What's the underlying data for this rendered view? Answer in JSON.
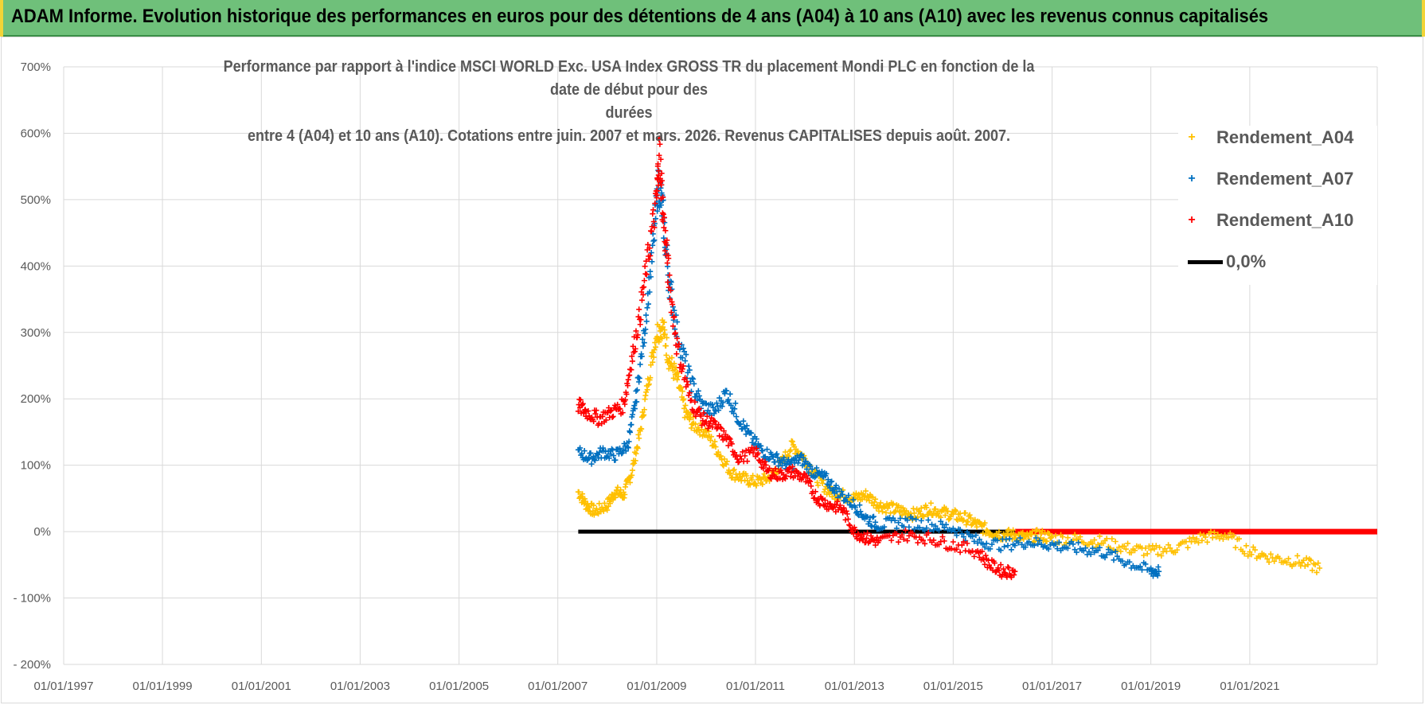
{
  "header": {
    "title": "ADAM Informe. Evolution historique des performances en euros pour des détentions de 4 ans (A04) à 10 ans (A10) avec les revenus connus capitalisés"
  },
  "chart_data": {
    "type": "scatter",
    "title_lines": [
      "Performance par rapport à l'indice MSCI WORLD Exc. USA Index GROSS TR  du placement Mondi PLC en fonction de la date de début pour des",
      "durées",
      "entre 4 (A04) et 10 ans (A10).  Cotations entre juin. 2007 et mars. 2026.  Revenus CAPITALISES depuis août. 2007."
    ],
    "ylim": [
      -200,
      700
    ],
    "yticks": [
      "- 200%",
      "- 100%",
      "0%",
      "100%",
      "200%",
      "300%",
      "400%",
      "500%",
      "600%",
      "700%"
    ],
    "xlim": [
      "1997-01-01",
      "2023-08-01"
    ],
    "xticks": [
      "01/01/1997",
      "01/01/1999",
      "01/01/2001",
      "01/01/2003",
      "01/01/2005",
      "01/01/2007",
      "01/01/2009",
      "01/01/2011",
      "01/01/2013",
      "01/01/2015",
      "01/01/2017",
      "01/01/2019",
      "01/01/2021"
    ],
    "grid": true,
    "legend_position": "top-right",
    "marker": "+",
    "series": [
      {
        "name": "Rendement_A04",
        "color": "#ffc000",
        "points": [
          [
            "2007-06-01",
            60
          ],
          [
            "2007-08-01",
            40
          ],
          [
            "2007-10-01",
            30
          ],
          [
            "2008-01-01",
            40
          ],
          [
            "2008-03-01",
            60
          ],
          [
            "2008-05-01",
            55
          ],
          [
            "2008-07-01",
            90
          ],
          [
            "2008-09-01",
            150
          ],
          [
            "2008-11-01",
            230
          ],
          [
            "2009-01-01",
            300
          ],
          [
            "2009-02-15",
            310
          ],
          [
            "2009-04-01",
            260
          ],
          [
            "2009-06-01",
            230
          ],
          [
            "2009-08-01",
            180
          ],
          [
            "2009-10-01",
            160
          ],
          [
            "2010-01-01",
            150
          ],
          [
            "2010-04-01",
            120
          ],
          [
            "2010-07-01",
            90
          ],
          [
            "2010-10-01",
            80
          ],
          [
            "2011-01-01",
            75
          ],
          [
            "2011-04-01",
            80
          ],
          [
            "2011-07-01",
            100
          ],
          [
            "2011-10-01",
            130
          ],
          [
            "2012-01-01",
            110
          ],
          [
            "2012-04-01",
            80
          ],
          [
            "2012-07-01",
            60
          ],
          [
            "2012-10-01",
            55
          ],
          [
            "2013-01-01",
            50
          ],
          [
            "2013-04-01",
            55
          ],
          [
            "2013-07-01",
            40
          ],
          [
            "2013-10-01",
            35
          ],
          [
            "2014-01-01",
            30
          ],
          [
            "2014-04-01",
            25
          ],
          [
            "2014-07-01",
            35
          ],
          [
            "2014-10-01",
            30
          ],
          [
            "2015-01-01",
            25
          ],
          [
            "2015-04-01",
            20
          ],
          [
            "2015-07-01",
            10
          ],
          [
            "2015-10-01",
            0
          ],
          [
            "2016-01-01",
            -5
          ],
          [
            "2016-04-01",
            -5
          ],
          [
            "2016-07-01",
            -10
          ],
          [
            "2016-10-01",
            -5
          ],
          [
            "2017-01-01",
            -10
          ],
          [
            "2017-07-01",
            -12
          ],
          [
            "2018-01-01",
            -15
          ],
          [
            "2018-07-01",
            -25
          ],
          [
            "2019-01-01",
            -30
          ],
          [
            "2019-07-01",
            -25
          ],
          [
            "2020-01-01",
            -10
          ],
          [
            "2020-07-01",
            -5
          ],
          [
            "2021-01-01",
            -30
          ],
          [
            "2021-07-01",
            -40
          ],
          [
            "2022-01-01",
            -45
          ],
          [
            "2022-06-01",
            -55
          ]
        ]
      },
      {
        "name": "Rendement_A07",
        "color": "#0070c0",
        "points": [
          [
            "2007-06-01",
            120
          ],
          [
            "2007-09-01",
            110
          ],
          [
            "2007-12-01",
            120
          ],
          [
            "2008-03-01",
            115
          ],
          [
            "2008-06-01",
            130
          ],
          [
            "2008-08-01",
            200
          ],
          [
            "2008-10-01",
            300
          ],
          [
            "2008-12-01",
            420
          ],
          [
            "2009-01-15",
            530
          ],
          [
            "2009-02-15",
            480
          ],
          [
            "2009-04-01",
            380
          ],
          [
            "2009-06-01",
            300
          ],
          [
            "2009-09-01",
            230
          ],
          [
            "2009-12-01",
            190
          ],
          [
            "2010-03-01",
            180
          ],
          [
            "2010-06-01",
            210
          ],
          [
            "2010-09-01",
            170
          ],
          [
            "2010-12-01",
            140
          ],
          [
            "2011-03-01",
            120
          ],
          [
            "2011-06-01",
            110
          ],
          [
            "2011-09-01",
            100
          ],
          [
            "2011-12-01",
            110
          ],
          [
            "2012-03-01",
            90
          ],
          [
            "2012-06-01",
            80
          ],
          [
            "2012-09-01",
            60
          ],
          [
            "2013-01-01",
            40
          ],
          [
            "2013-04-01",
            20
          ],
          [
            "2013-07-01",
            10
          ],
          [
            "2014-01-01",
            15
          ],
          [
            "2014-07-01",
            10
          ],
          [
            "2015-01-01",
            5
          ],
          [
            "2015-07-01",
            -15
          ],
          [
            "2016-01-01",
            -20
          ],
          [
            "2016-07-01",
            -15
          ],
          [
            "2017-01-01",
            -20
          ],
          [
            "2017-07-01",
            -25
          ],
          [
            "2018-01-01",
            -30
          ],
          [
            "2018-07-01",
            -45
          ],
          [
            "2019-01-01",
            -60
          ],
          [
            "2019-03-01",
            -60
          ]
        ]
      },
      {
        "name": "Rendement_A10",
        "color": "#ff0000",
        "points": [
          [
            "2007-06-01",
            190
          ],
          [
            "2007-08-01",
            180
          ],
          [
            "2007-11-01",
            170
          ],
          [
            "2008-02-01",
            180
          ],
          [
            "2008-05-01",
            190
          ],
          [
            "2008-07-01",
            260
          ],
          [
            "2008-09-01",
            330
          ],
          [
            "2008-11-01",
            420
          ],
          [
            "2009-01-01",
            500
          ],
          [
            "2009-01-20",
            580
          ],
          [
            "2009-02-20",
            470
          ],
          [
            "2009-04-01",
            380
          ],
          [
            "2009-06-01",
            280
          ],
          [
            "2009-09-01",
            200
          ],
          [
            "2009-12-01",
            170
          ],
          [
            "2010-03-01",
            160
          ],
          [
            "2010-06-01",
            140
          ],
          [
            "2010-09-01",
            110
          ],
          [
            "2011-01-01",
            120
          ],
          [
            "2011-04-01",
            90
          ],
          [
            "2011-07-01",
            85
          ],
          [
            "2011-10-01",
            90
          ],
          [
            "2012-01-01",
            80
          ],
          [
            "2012-04-01",
            50
          ],
          [
            "2012-07-01",
            40
          ],
          [
            "2012-10-01",
            35
          ],
          [
            "2013-01-01",
            0
          ],
          [
            "2013-04-01",
            -10
          ],
          [
            "2013-07-01",
            -15
          ],
          [
            "2014-01-01",
            -5
          ],
          [
            "2014-07-01",
            -10
          ],
          [
            "2015-01-01",
            -20
          ],
          [
            "2015-07-01",
            -30
          ],
          [
            "2015-10-01",
            -50
          ],
          [
            "2016-01-01",
            -60
          ],
          [
            "2016-04-01",
            -60
          ]
        ]
      }
    ],
    "reference_lines": [
      {
        "name": "0,0%",
        "color": "#000000",
        "x": [
          "2007-06-01",
          "2016-04-01"
        ],
        "y": 0
      },
      {
        "name": "",
        "color": "#ff0000",
        "x": [
          "2016-04-01",
          "2023-08-01"
        ],
        "y": 0
      }
    ],
    "legend": [
      {
        "label": "Rendement_A04",
        "color": "#ffc000",
        "kind": "marker"
      },
      {
        "label": "Rendement_A07",
        "color": "#0070c0",
        "kind": "marker"
      },
      {
        "label": "Rendement_A10",
        "color": "#ff0000",
        "kind": "marker"
      },
      {
        "label": "0,0%",
        "color": "#000000",
        "kind": "line"
      }
    ]
  }
}
